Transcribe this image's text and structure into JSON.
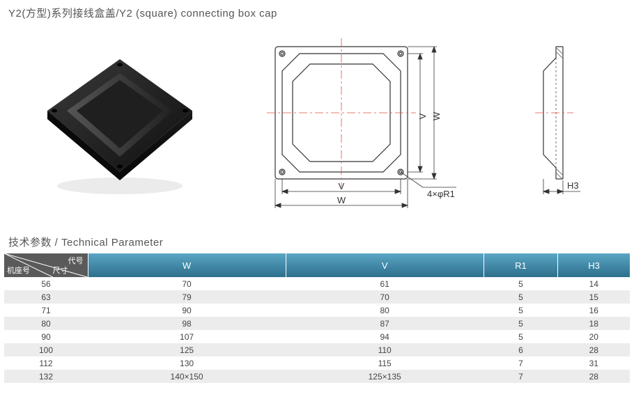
{
  "title": "Y2(方型)系列接线盒盖/Y2 (square) connecting box cap",
  "tech_title": "技术参数 / Technical Parameter",
  "corner": {
    "top": "代号",
    "left": "机座号",
    "right": "尺寸"
  },
  "diagrams": {
    "front": {
      "labels": {
        "V_right": "V",
        "W_right": "W",
        "V_bottom": "V",
        "W_bottom": "W",
        "hole": "4×φR1"
      }
    },
    "side": {
      "label_H3": "H3"
    }
  },
  "table": {
    "columns": [
      "W",
      "V",
      "R1",
      "H3"
    ],
    "rows": [
      {
        "seat": "56",
        "values": [
          "70",
          "61",
          "5",
          "14"
        ]
      },
      {
        "seat": "63",
        "values": [
          "79",
          "70",
          "5",
          "15"
        ]
      },
      {
        "seat": "71",
        "values": [
          "90",
          "80",
          "5",
          "16"
        ]
      },
      {
        "seat": "80",
        "values": [
          "98",
          "87",
          "5",
          "18"
        ]
      },
      {
        "seat": "90",
        "values": [
          "107",
          "94",
          "5",
          "20"
        ]
      },
      {
        "seat": "100",
        "values": [
          "125",
          "110",
          "6",
          "28"
        ]
      },
      {
        "seat": "112",
        "values": [
          "130",
          "115",
          "7",
          "31"
        ]
      },
      {
        "seat": "132",
        "values": [
          "140×150",
          "125×135",
          "7",
          "28"
        ]
      }
    ],
    "row_colors": {
      "odd": "#ffffff",
      "even": "#ececec"
    },
    "header_gradient": [
      "#5aa6c4",
      "#2d6f8d"
    ],
    "corner_bg": "#5a5a5a"
  },
  "colors": {
    "centerline": "#e74c3c",
    "outline": "#333333",
    "product_dark": "#1a1a1a",
    "product_mid": "#2d2d2d",
    "product_light": "#555555"
  }
}
